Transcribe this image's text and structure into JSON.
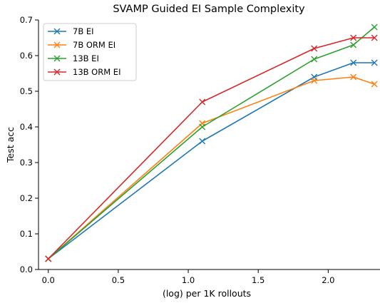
{
  "chart_data": {
    "type": "line",
    "title": "SVAMP Guided EI Sample Complexity",
    "xlabel": "(log) per 1K rollouts",
    "ylabel": "Test acc",
    "xlim": [
      -0.07,
      2.37
    ],
    "ylim": [
      0.0,
      0.7
    ],
    "xticks": [
      0.0,
      0.5,
      1.0,
      1.5,
      2.0
    ],
    "xtick_labels": [
      "0.0",
      "0.5",
      "1.0",
      "1.5",
      "2.0"
    ],
    "yticks": [
      0.0,
      0.1,
      0.2,
      0.3,
      0.4,
      0.5,
      0.6,
      0.7
    ],
    "ytick_labels": [
      "0.0",
      "0.1",
      "0.2",
      "0.3",
      "0.4",
      "0.5",
      "0.6",
      "0.7"
    ],
    "grid": false,
    "legend_position": "top-left",
    "marker": "x",
    "x": [
      0.0,
      1.1,
      1.9,
      2.18,
      2.33
    ],
    "series": [
      {
        "name": "7B EI",
        "color": "#1f77b4",
        "values": [
          0.03,
          0.36,
          0.54,
          0.58,
          0.58
        ]
      },
      {
        "name": "7B ORM EI",
        "color": "#ff7f0e",
        "values": [
          0.03,
          0.41,
          0.53,
          0.54,
          0.52
        ]
      },
      {
        "name": "13B EI",
        "color": "#2ca02c",
        "values": [
          0.03,
          0.4,
          0.59,
          0.63,
          0.68
        ]
      },
      {
        "name": "13B ORM EI",
        "color": "#d62728",
        "values": [
          0.03,
          0.47,
          0.62,
          0.65,
          0.65
        ]
      }
    ]
  }
}
